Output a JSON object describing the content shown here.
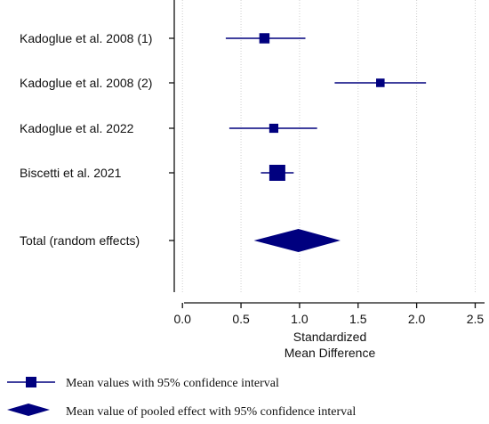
{
  "chart_data": {
    "type": "forest",
    "xlabel_lines": [
      "Standardized",
      "Mean Difference"
    ],
    "xlim": [
      -0.07,
      2.58
    ],
    "xticks": [
      0.0,
      0.5,
      1.0,
      1.5,
      2.0,
      2.5
    ],
    "xtick_labels": [
      "0.0",
      "0.5",
      "1.0",
      "1.5",
      "2.0",
      "2.5"
    ],
    "grid": "vertical dotted",
    "marker_color": "#00007f",
    "studies": [
      {
        "label": "Kadoglue et al. 2008 (1)",
        "estimate": 0.7,
        "ci_low": 0.37,
        "ci_high": 1.05,
        "weight": 1.0
      },
      {
        "label": "Kadoglue et al. 2008 (2)",
        "estimate": 1.69,
        "ci_low": 1.3,
        "ci_high": 2.08,
        "weight": 0.7
      },
      {
        "label": "Kadoglue et al. 2022",
        "estimate": 0.78,
        "ci_low": 0.4,
        "ci_high": 1.15,
        "weight": 0.8
      },
      {
        "label": "Biscetti et al. 2021",
        "estimate": 0.81,
        "ci_low": 0.67,
        "ci_high": 0.95,
        "weight": 2.0
      }
    ],
    "pooled": {
      "label": "Total (random effects)",
      "estimate": 0.99,
      "ci_low": 0.61,
      "ci_high": 1.35
    },
    "legend": [
      {
        "symbol": "square-with-ci",
        "text": "Mean values with 95% confidence interval"
      },
      {
        "symbol": "diamond",
        "text": "Mean value of pooled effect with 95% confidence interval"
      }
    ]
  }
}
